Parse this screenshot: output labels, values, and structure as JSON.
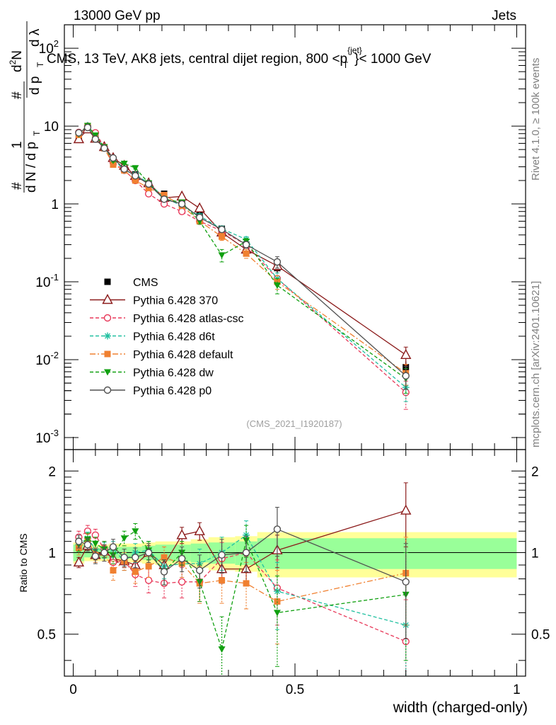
{
  "header": {
    "left": "13000 GeV pp",
    "right": "Jets"
  },
  "title": {
    "main": "CMS, 13 TeV, AK8 jets, central dijet region, 800 <p",
    "sup": "{jet}",
    "sub": "T",
    "tail": "}< 1000 GeV"
  },
  "side_labels": {
    "rivet": "Rivet 4.1.0, ≥ 100k events",
    "mcplots": "mcplots.cern.ch [arXiv:2401.10621]"
  },
  "analysis_tag": "(CMS_2021_I1920187)",
  "ylabel_main": {
    "hash1": "#",
    "one": "1",
    "dN": "d N / d p",
    "T": "T",
    "hash2": "#",
    "d2N": "d",
    "two": "2",
    "N": "N",
    "dp": "d p",
    "T2": "T",
    "dl": "d λ"
  },
  "ylabel_ratio": "Ratio to CMS",
  "xlabel": "width (charged-only)",
  "colors": {
    "CMS": "#000000",
    "p370": "#8b1a1a",
    "atlas": "#e8395a",
    "d6t": "#20c0a0",
    "default": "#f08030",
    "dw": "#10a010",
    "p0": "#505050",
    "band_inner": "#99ff99",
    "band_outer": "#ffff99"
  },
  "chart_data": [
    {
      "type": "scatter",
      "panel": "main",
      "yscale": "log",
      "xlim": [
        -0.02,
        1.02
      ],
      "ylim": [
        0.0007,
        200
      ],
      "yticks": [
        {
          "v": 0.001,
          "base": "10",
          "exp": "-3"
        },
        {
          "v": 0.01,
          "base": "10",
          "exp": "-2"
        },
        {
          "v": 0.1,
          "base": "10",
          "exp": "-1"
        },
        {
          "v": 1,
          "base": "1",
          "exp": ""
        },
        {
          "v": 10,
          "base": "10",
          "exp": ""
        },
        {
          "v": 100,
          "base": "10",
          "exp": "2"
        }
      ],
      "x": [
        0.0125,
        0.0325,
        0.05,
        0.07,
        0.09,
        0.115,
        0.14,
        0.17,
        0.205,
        0.245,
        0.285,
        0.335,
        0.39,
        0.46,
        0.75
      ],
      "series": [
        {
          "name": "CMS",
          "key": "CMS",
          "style": "data",
          "values": [
            7.4,
            9.0,
            7.0,
            5.2,
            3.7,
            2.9,
            2.4,
            1.8,
            1.35,
            1.05,
            0.78,
            0.48,
            0.3,
            0.15,
            0.008
          ],
          "err": [
            0.4,
            0.4,
            0.3,
            0.25,
            0.2,
            0.15,
            0.12,
            0.1,
            0.08,
            0.07,
            0.06,
            0.05,
            0.03,
            0.02,
            0.0015
          ]
        },
        {
          "name": "Pythia 6.428 370",
          "key": "p370",
          "style": "p370",
          "values": [
            6.8,
            9.1,
            6.9,
            5.4,
            3.9,
            3.1,
            2.3,
            1.85,
            1.2,
            1.25,
            0.88,
            0.43,
            0.26,
            0.16,
            0.0115
          ],
          "err": [
            0.2,
            0.2,
            0.2,
            0.15,
            0.1,
            0.1,
            0.1,
            0.06,
            0.05,
            0.06,
            0.05,
            0.03,
            0.02,
            0.02,
            0.003
          ]
        },
        {
          "name": "Pythia 6.428 atlas-csc",
          "key": "atlas",
          "style": "atlas",
          "values": [
            8.3,
            10.0,
            8.2,
            5.4,
            3.4,
            2.7,
            2.0,
            1.35,
            1.0,
            0.8,
            0.6,
            0.45,
            0.3,
            0.11,
            0.0038
          ],
          "err": [
            0.3,
            0.3,
            0.3,
            0.2,
            0.15,
            0.1,
            0.1,
            0.07,
            0.06,
            0.05,
            0.05,
            0.04,
            0.03,
            0.02,
            0.0015
          ]
        },
        {
          "name": "Pythia 6.428 d6t",
          "key": "d6t",
          "style": "d6t",
          "values": [
            7.8,
            10.2,
            7.2,
            5.3,
            3.8,
            2.7,
            2.4,
            1.85,
            1.2,
            0.95,
            0.7,
            0.48,
            0.35,
            0.11,
            0.0044
          ],
          "err": [
            0.3,
            0.3,
            0.3,
            0.2,
            0.15,
            0.1,
            0.1,
            0.08,
            0.06,
            0.05,
            0.05,
            0.04,
            0.03,
            0.02,
            0.0015
          ]
        },
        {
          "name": "Pythia 6.428 default",
          "key": "default",
          "style": "default",
          "values": [
            7.7,
            10.0,
            6.9,
            5.2,
            3.2,
            2.7,
            2.0,
            1.6,
            1.3,
            0.95,
            0.6,
            0.38,
            0.23,
            0.1,
            0.0067
          ],
          "err": [
            0.3,
            0.3,
            0.3,
            0.2,
            0.15,
            0.1,
            0.1,
            0.08,
            0.06,
            0.05,
            0.05,
            0.04,
            0.03,
            0.02,
            0.002
          ]
        },
        {
          "name": "Pythia 6.428 dw",
          "key": "dw",
          "style": "dw",
          "values": [
            7.9,
            10.1,
            7.6,
            5.4,
            3.6,
            3.3,
            2.9,
            1.85,
            1.15,
            1.05,
            0.6,
            0.22,
            0.33,
            0.09,
            0.0057
          ],
          "err": [
            0.3,
            0.3,
            0.3,
            0.2,
            0.15,
            0.1,
            0.1,
            0.08,
            0.06,
            0.05,
            0.05,
            0.04,
            0.03,
            0.02,
            0.002
          ]
        },
        {
          "name": "Pythia 6.428 p0",
          "key": "p0",
          "style": "p0",
          "values": [
            8.2,
            9.6,
            6.8,
            5.2,
            3.9,
            2.8,
            2.3,
            1.8,
            1.15,
            1.0,
            0.67,
            0.47,
            0.3,
            0.18,
            0.0062
          ],
          "err": [
            0.3,
            0.3,
            0.3,
            0.2,
            0.15,
            0.1,
            0.1,
            0.08,
            0.06,
            0.05,
            0.05,
            0.04,
            0.03,
            0.03,
            0.002
          ]
        }
      ]
    },
    {
      "type": "scatter",
      "panel": "ratio",
      "xlim": [
        -0.02,
        1.02
      ],
      "ylim": [
        0.35,
        2.4
      ],
      "yticks": [
        0.5,
        1,
        2
      ],
      "xticks": [
        0,
        0.5,
        1
      ],
      "band": {
        "edges": [
          0,
          0.025,
          0.04,
          0.06,
          0.08,
          0.1,
          0.13,
          0.155,
          0.185,
          0.225,
          0.265,
          0.305,
          0.365,
          0.415,
          0.5,
          1.0
        ],
        "inner": [
          0.07,
          0.04,
          0.04,
          0.05,
          0.05,
          0.05,
          0.05,
          0.06,
          0.07,
          0.07,
          0.08,
          0.09,
          0.1,
          0.13,
          0.13
        ],
        "outer": [
          0.09,
          0.07,
          0.07,
          0.07,
          0.08,
          0.08,
          0.08,
          0.09,
          0.1,
          0.1,
          0.12,
          0.14,
          0.15,
          0.19,
          0.19
        ]
      },
      "x": [
        0.0125,
        0.0325,
        0.05,
        0.07,
        0.09,
        0.115,
        0.14,
        0.17,
        0.205,
        0.245,
        0.285,
        0.335,
        0.39,
        0.46,
        0.75
      ],
      "series": [
        {
          "name": "Pythia 6.428 370",
          "key": "p370",
          "style": "p370",
          "values": [
            0.92,
            1.06,
            0.98,
            1.01,
            0.95,
            0.93,
            0.9,
            1.0,
            0.9,
            1.16,
            1.2,
            0.87,
            0.87,
            1.02,
            1.43
          ],
          "err": [
            0.04,
            0.04,
            0.04,
            0.05,
            0.05,
            0.05,
            0.06,
            0.06,
            0.07,
            0.08,
            0.09,
            0.1,
            0.1,
            0.14,
            0.38
          ]
        },
        {
          "name": "Pythia 6.428 atlas-csc",
          "key": "atlas",
          "style": "atlas",
          "values": [
            1.14,
            1.2,
            1.16,
            1.03,
            0.92,
            0.93,
            0.83,
            0.79,
            0.77,
            0.78,
            0.78,
            0.95,
            1.0,
            0.74,
            0.47
          ],
          "err": [
            0.06,
            0.06,
            0.06,
            0.07,
            0.07,
            0.07,
            0.08,
            0.08,
            0.09,
            0.1,
            0.12,
            0.14,
            0.15,
            0.2,
            0.2
          ]
        },
        {
          "name": "Pythia 6.428 d6t",
          "key": "d6t",
          "style": "d6t",
          "values": [
            1.07,
            1.13,
            1.03,
            1.02,
            1.03,
            0.93,
            1.0,
            1.02,
            0.89,
            0.91,
            0.91,
            1.0,
            1.16,
            0.72,
            0.54
          ],
          "err": [
            0.06,
            0.06,
            0.06,
            0.07,
            0.07,
            0.07,
            0.08,
            0.08,
            0.09,
            0.1,
            0.12,
            0.14,
            0.15,
            0.2,
            0.25
          ]
        },
        {
          "name": "Pythia 6.428 default",
          "key": "default",
          "style": "default",
          "values": [
            1.04,
            1.11,
            0.98,
            1.0,
            0.86,
            0.93,
            0.85,
            0.89,
            0.96,
            0.91,
            0.77,
            0.79,
            0.77,
            0.66,
            0.84
          ],
          "err": [
            0.06,
            0.06,
            0.06,
            0.07,
            0.07,
            0.07,
            0.08,
            0.08,
            0.09,
            0.1,
            0.12,
            0.14,
            0.15,
            0.2,
            0.3
          ]
        },
        {
          "name": "Pythia 6.428 dw",
          "key": "dw",
          "style": "dw",
          "values": [
            1.07,
            1.12,
            1.08,
            1.03,
            0.98,
            1.13,
            1.2,
            1.02,
            0.85,
            1.0,
            0.78,
            0.44,
            1.11,
            0.6,
            0.7
          ],
          "err": [
            0.06,
            0.06,
            0.06,
            0.07,
            0.07,
            0.07,
            0.08,
            0.08,
            0.09,
            0.1,
            0.12,
            0.14,
            0.15,
            0.22,
            0.3
          ]
        },
        {
          "name": "Pythia 6.428 p0",
          "key": "p0",
          "style": "p0",
          "values": [
            1.1,
            1.07,
            0.97,
            1.0,
            1.05,
            0.96,
            0.96,
            1.0,
            0.85,
            0.95,
            0.86,
            0.98,
            1.0,
            1.22,
            0.78
          ],
          "err": [
            0.06,
            0.06,
            0.06,
            0.07,
            0.07,
            0.07,
            0.08,
            0.08,
            0.09,
            0.1,
            0.12,
            0.14,
            0.15,
            0.25,
            0.3
          ]
        }
      ]
    }
  ]
}
